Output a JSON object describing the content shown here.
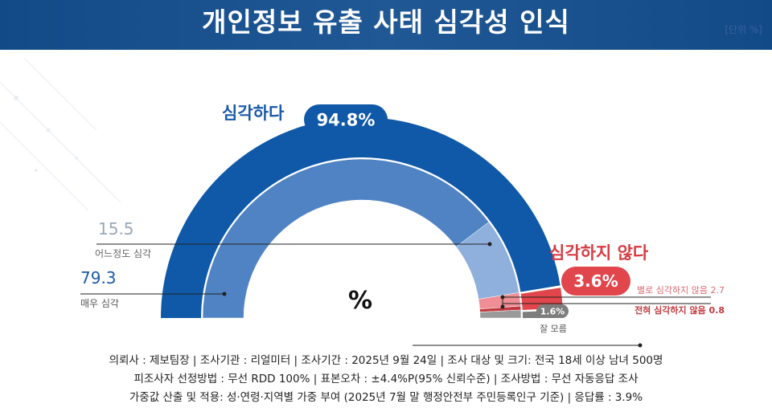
{
  "header": {
    "title": "개인정보 유출 사태 심각성 인식",
    "unit": "[단위 %]"
  },
  "chart_data": {
    "type": "pie",
    "title": "개인정보 유출 사태 심각성 인식",
    "center_label": "%",
    "groups": [
      {
        "name": "심각하다",
        "value": 94.8,
        "value_label": "94.8%",
        "color": "#0f59a8"
      },
      {
        "name": "심각하지 않다",
        "value": 3.6,
        "value_label": "3.6%",
        "color": "#e0464b"
      },
      {
        "name": "잘 모름",
        "value": 1.6,
        "value_label": "1.6%",
        "color": "#7d7d7d"
      }
    ],
    "slices": [
      {
        "name": "매우 심각",
        "value": 79.3,
        "value_label": "79.3",
        "color": "#5083c3"
      },
      {
        "name": "어느정도 심각",
        "value": 15.5,
        "value_label": "15.5",
        "color": "#8fb0dd"
      },
      {
        "name": "별로 심각하지 않음",
        "value": 2.7,
        "value_label": "별로 심각하지 않음 2.7",
        "color": "#ef8e94"
      },
      {
        "name": "전혀 심각하지 않음",
        "value": 0.8,
        "value_label": "전혀 심각하지 않음 0.8",
        "color": "#c23a3f"
      },
      {
        "name": "잘 모름",
        "value": 1.6,
        "value_label": "1.6%",
        "color": "#9a9a9a"
      }
    ]
  },
  "footer": {
    "line1": "의뢰사 : 제보팀장 | 조사기관 : 리얼미터  |  조사기간 : 2025년 9월 24일 | 조사 대상 및 크기: 전국 18세 이상 남녀 500명",
    "line2": "피조사자 선정방법 : 무선 RDD 100% | 표본오차 : ±4.4%P(95% 신뢰수준) | 조사방법 : 무선 자동응답 조사",
    "line3": "가중값 산출 및 적용: 성·연령·지역별 가중 부여 (2025년 7월 말 행정안전부 주민등록인구 기준) | 응답률 : 3.9%"
  }
}
